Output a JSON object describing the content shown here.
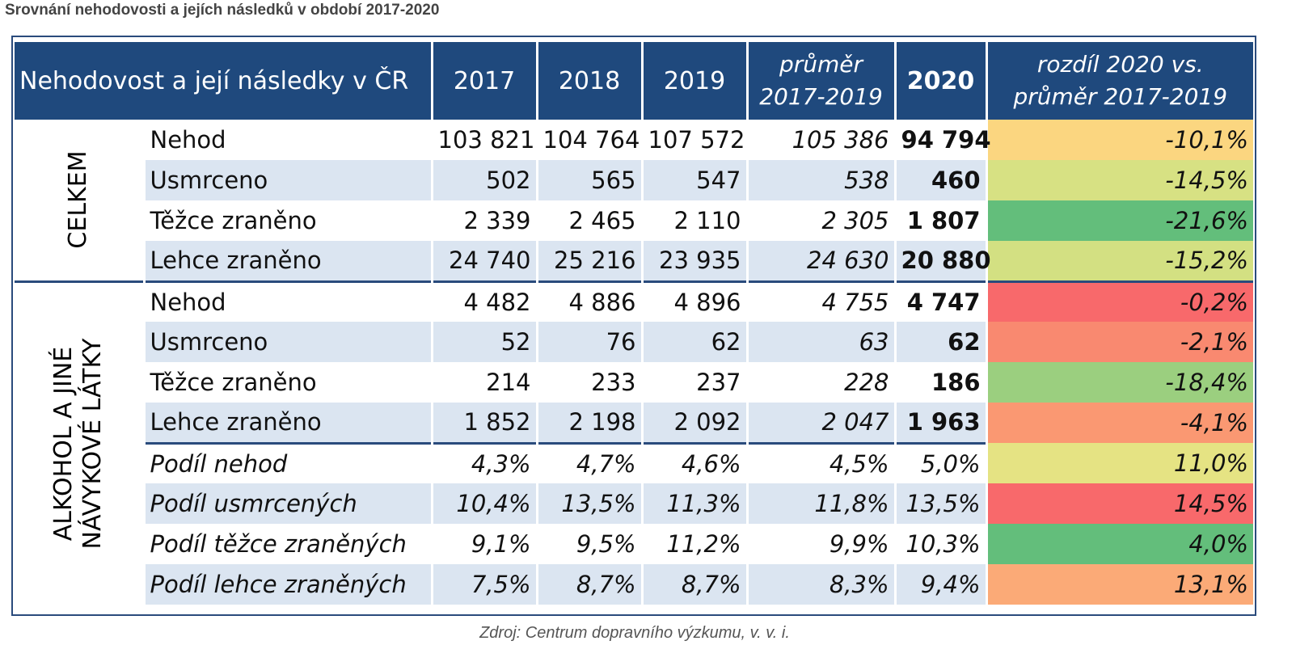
{
  "caption": "Srovnání nehodovosti a jejích následků v období 2017-2020",
  "header": {
    "title": "Nehodovost a její následky v ČR",
    "y2017": "2017",
    "y2018": "2018",
    "y2019": "2019",
    "avg_line1": "průměr",
    "avg_line2": "2017-2019",
    "y2020": "2020",
    "diff_line1": "rozdíl 2020 vs.",
    "diff_line2": "průměr 2017-2019"
  },
  "groups": {
    "celkem": "CELKEM",
    "alkohol_line1": "ALKOHOL A JINÉ",
    "alkohol_line2": "NÁVYKOVÉ LÁTKY"
  },
  "rows": [
    {
      "label": "Nehod",
      "v2017": "103 821",
      "v2018": "104 764",
      "v2019": "107 572",
      "avg": "105 386",
      "v2020": "94 794",
      "diff": "-10,1%",
      "color": "#fbd680"
    },
    {
      "label": "Usmrceno",
      "v2017": "502",
      "v2018": "565",
      "v2019": "547",
      "avg": "538",
      "v2020": "460",
      "diff": "-14,5%",
      "color": "#d7e183"
    },
    {
      "label": "Těžce zraněno",
      "v2017": "2 339",
      "v2018": "2 465",
      "v2019": "2 110",
      "avg": "2 305",
      "v2020": "1 807",
      "diff": "-21,6%",
      "color": "#63be7b"
    },
    {
      "label": "Lehce zraněno",
      "v2017": "24 740",
      "v2018": "25 216",
      "v2019": "23 935",
      "avg": "24 630",
      "v2020": "20 880",
      "diff": "-15,2%",
      "color": "#d3e082"
    },
    {
      "label": "Nehod",
      "v2017": "4 482",
      "v2018": "4 886",
      "v2019": "4 896",
      "avg": "4 755",
      "v2020": "4 747",
      "diff": "-0,2%",
      "color": "#f8696b"
    },
    {
      "label": "Usmrceno",
      "v2017": "52",
      "v2018": "76",
      "v2019": "62",
      "avg": "63",
      "v2020": "62",
      "diff": "-2,1%",
      "color": "#f98970"
    },
    {
      "label": "Těžce zraněno",
      "v2017": "214",
      "v2018": "233",
      "v2019": "237",
      "avg": "228",
      "v2020": "186",
      "diff": "-18,4%",
      "color": "#9bcf7f"
    },
    {
      "label": "Lehce zraněno",
      "v2017": "1 852",
      "v2018": "2 198",
      "v2019": "2 092",
      "avg": "2 047",
      "v2020": "1 963",
      "diff": "-4,1%",
      "color": "#fa9872"
    },
    {
      "label": "Podíl nehod",
      "v2017": "4,3%",
      "v2018": "4,7%",
      "v2019": "4,6%",
      "avg": "4,5%",
      "v2020": "5,0%",
      "diff": "11,0%",
      "color": "#e5e383"
    },
    {
      "label": "Podíl usmrcených",
      "v2017": "10,4%",
      "v2018": "13,5%",
      "v2019": "11,3%",
      "avg": "11,8%",
      "v2020": "13,5%",
      "diff": "14,5%",
      "color": "#f8696b"
    },
    {
      "label": "Podíl těžce zraněných",
      "v2017": "9,1%",
      "v2018": "9,5%",
      "v2019": "11,2%",
      "avg": "9,9%",
      "v2020": "10,3%",
      "diff": "4,0%",
      "color": "#63be7b"
    },
    {
      "label": "Podíl lehce zraněných",
      "v2017": "7,5%",
      "v2018": "8,7%",
      "v2019": "8,7%",
      "avg": "8,3%",
      "v2020": "9,4%",
      "diff": "13,1%",
      "color": "#fbaa77"
    }
  ],
  "source": "Zdroj: Centrum dopravního výzkumu, v. v. i."
}
